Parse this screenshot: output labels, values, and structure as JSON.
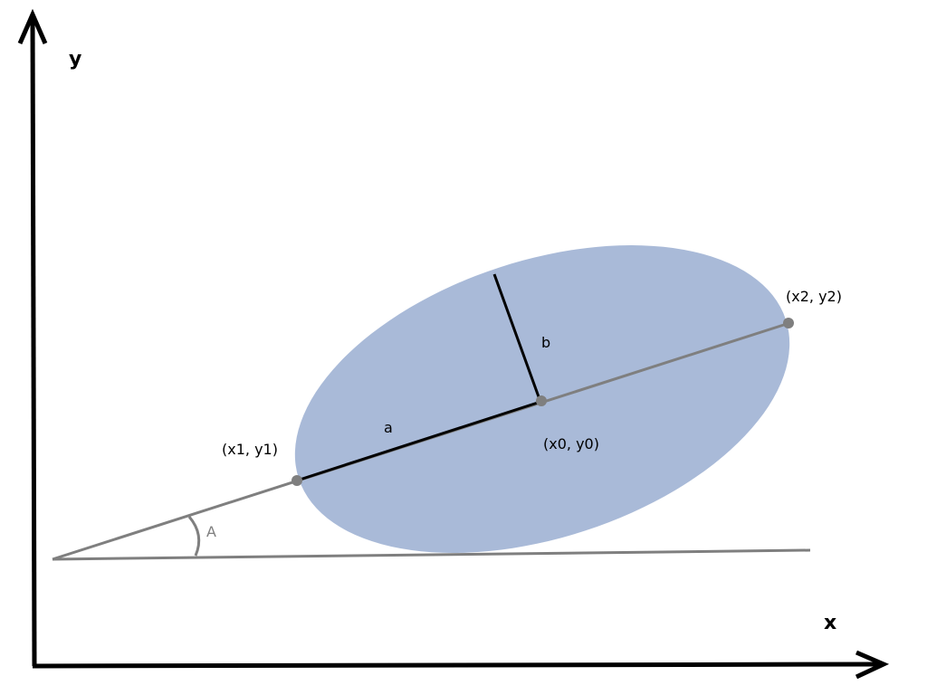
{
  "labels": {
    "y_axis": "y",
    "x_axis": "x",
    "p1": "(x1, y1)",
    "p2": "(x2, y2)",
    "p0": "(x0, y0)",
    "semi_major": "a",
    "semi_minor": "b",
    "angle": "A"
  },
  "colors": {
    "ellipse_fill": "#a9bad8",
    "axis": "#000000",
    "guide_line": "#7f7f7f",
    "point": "#7f7f7f",
    "radius_line": "#000000",
    "text": "#000000",
    "angle_text": "#7f7f7f"
  }
}
